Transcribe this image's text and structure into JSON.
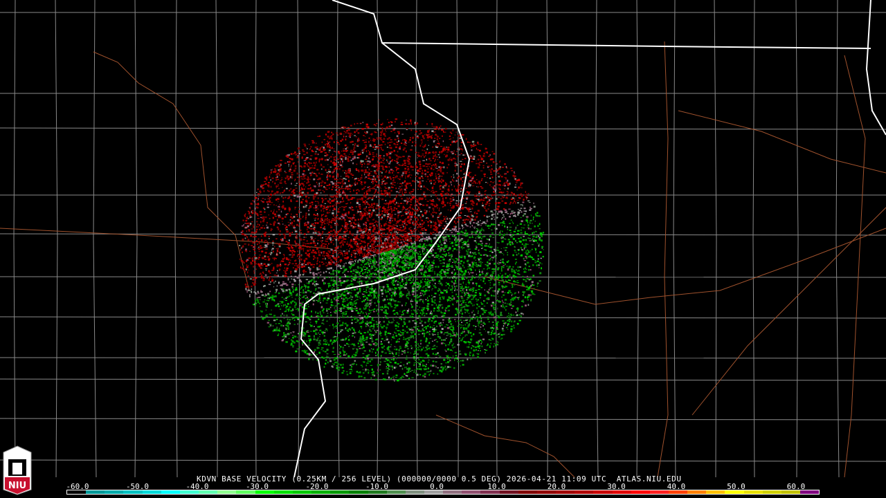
{
  "product": {
    "title": "KDVN BASE VELOCITY (0.25KM / 256 LEVEL) (000000/0000 0.5 DEG) 2026-04-21 11:09 UTC  ATLAS.NIU.EDU",
    "logo_text": "NIU"
  },
  "legend": {
    "ticks": [
      "-60.0",
      "-50.0",
      "-40.0",
      "-30.0",
      "-20.0",
      "-10.0",
      "0.0",
      "10.0",
      "20.0",
      "30.0",
      "40.0",
      "50.0",
      "60.0"
    ],
    "colors": [
      "#000000",
      "#009999",
      "#00aaaa",
      "#00c0c0",
      "#00d8d8",
      "#00ffff",
      "#40ffd0",
      "#60ffb0",
      "#90ff90",
      "#60ff60",
      "#00ff00",
      "#00e000",
      "#00c800",
      "#00b000",
      "#009800",
      "#008000",
      "#207a20",
      "#509050",
      "#809080",
      "#a0a0a0",
      "#907080",
      "#905070",
      "#803050",
      "#701020",
      "#800000",
      "#900000",
      "#a00000",
      "#b00000",
      "#c80000",
      "#e00000",
      "#ff0000",
      "#ff2020",
      "#ff4000",
      "#ff8000",
      "#ffc000",
      "#ffff00",
      "#e8e000",
      "#d0d000",
      "#c0c000",
      "#800080"
    ],
    "accent_colors": {
      "inbound": "#00b000",
      "outbound": "#b00000",
      "county_line": "#8a8a8a",
      "state_line": "#ffffff",
      "highway": "#a0522d"
    }
  }
}
